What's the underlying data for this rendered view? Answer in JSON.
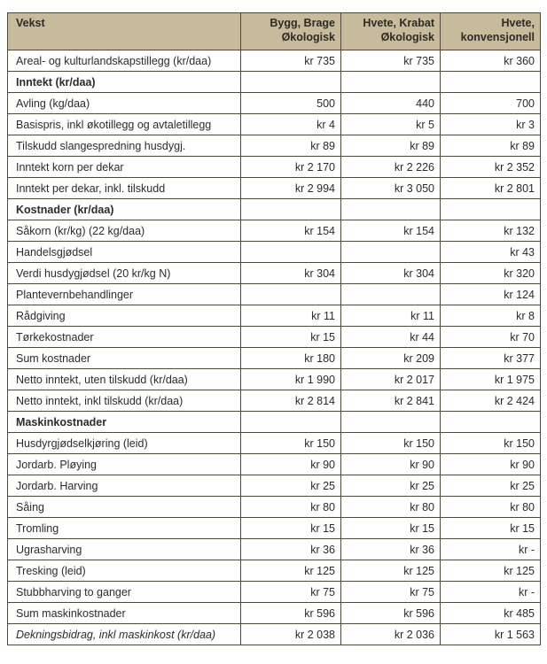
{
  "header": {
    "label": "Vekst",
    "columns": [
      "Bygg, Brage Økologisk",
      "Hvete, Krabat Økologisk",
      "Hvete, konvensjonell"
    ]
  },
  "colors": {
    "header_bg": "#c8bb9b",
    "border": "#4d4838"
  },
  "rows": [
    {
      "label": "Areal- og kulturlandskapstillegg (kr/daa)",
      "values": [
        "kr 735",
        "kr 735",
        "kr 360"
      ]
    },
    {
      "label": "Inntekt (kr/daa)",
      "section": true,
      "values": [
        "",
        "",
        ""
      ]
    },
    {
      "label": "Avling (kg/daa)",
      "values": [
        "500",
        "440",
        "700"
      ]
    },
    {
      "label": "Basispris, inkl økotillegg og avtaletillegg",
      "values": [
        "kr 4",
        "kr 5",
        "kr 3"
      ]
    },
    {
      "label": "Tilskudd slangespredning husdygj.",
      "values": [
        "kr 89",
        "kr 89",
        "kr 89"
      ]
    },
    {
      "label": "Inntekt korn per dekar",
      "values": [
        "kr 2 170",
        "kr 2 226",
        "kr 2 352"
      ]
    },
    {
      "label": "Inntekt per dekar, inkl. tilskudd",
      "values": [
        "kr 2 994",
        "kr 3 050",
        "kr 2 801"
      ]
    },
    {
      "label": "Kostnader (kr/daa)",
      "section": true,
      "values": [
        "",
        "",
        ""
      ]
    },
    {
      "label": "Såkorn (kr/kg) (22 kg/daa)",
      "values": [
        "kr 154",
        "kr 154",
        "kr 132"
      ]
    },
    {
      "label": "Handelsgjødsel",
      "values": [
        "",
        "",
        "kr 43"
      ]
    },
    {
      "label": "Verdi husdygjødsel (20 kr/kg N)",
      "values": [
        "kr 304",
        "kr 304",
        "kr 320"
      ]
    },
    {
      "label": "Plantevernbehandlinger",
      "values": [
        "",
        "",
        "kr 124"
      ]
    },
    {
      "label": "Rådgiving",
      "values": [
        "kr 11",
        "kr 11",
        "kr 8"
      ]
    },
    {
      "label": "Tørkekostnader",
      "values": [
        "kr 15",
        "kr 44",
        "kr 70"
      ]
    },
    {
      "label": "Sum kostnader",
      "values": [
        "kr 180",
        "kr 209",
        "kr 377"
      ]
    },
    {
      "label": "Netto inntekt, uten tilskudd (kr/daa)",
      "values": [
        "kr 1 990",
        "kr 2 017",
        "kr 1 975"
      ]
    },
    {
      "label": "Netto inntekt, inkl tilskudd (kr/daa)",
      "values": [
        "kr 2 814",
        "kr 2 841",
        "kr 2 424"
      ]
    },
    {
      "label": "Maskinkostnader",
      "section": true,
      "values": [
        "",
        "",
        ""
      ]
    },
    {
      "label": "Husdyrgjødselkjøring (leid)",
      "values": [
        "kr 150",
        "kr 150",
        "kr 150"
      ]
    },
    {
      "label": "Jordarb. Pløying",
      "values": [
        "kr 90",
        "kr 90",
        "kr 90"
      ]
    },
    {
      "label": "Jordarb. Harving",
      "values": [
        "kr 25",
        "kr 25",
        "kr 25"
      ]
    },
    {
      "label": "Såing",
      "values": [
        "kr 80",
        "kr 80",
        "kr 80"
      ]
    },
    {
      "label": "Tromling",
      "values": [
        "kr 15",
        "kr 15",
        "kr 15"
      ]
    },
    {
      "label": "Ugrasharving",
      "values": [
        "kr 36",
        "kr 36",
        "kr -"
      ]
    },
    {
      "label": "Tresking (leid)",
      "values": [
        "kr 125",
        "kr 125",
        "kr 125"
      ]
    },
    {
      "label": "Stubbharving to ganger",
      "values": [
        "kr 75",
        "kr 75",
        "kr -"
      ]
    },
    {
      "label": "Sum maskinkostnader",
      "values": [
        "kr 596",
        "kr 596",
        "kr 485"
      ]
    },
    {
      "label": "Dekningsbidrag, inkl maskinkost (kr/daa)",
      "italic": true,
      "values": [
        "kr 2 038",
        "kr 2 036",
        "kr 1 563"
      ]
    }
  ]
}
